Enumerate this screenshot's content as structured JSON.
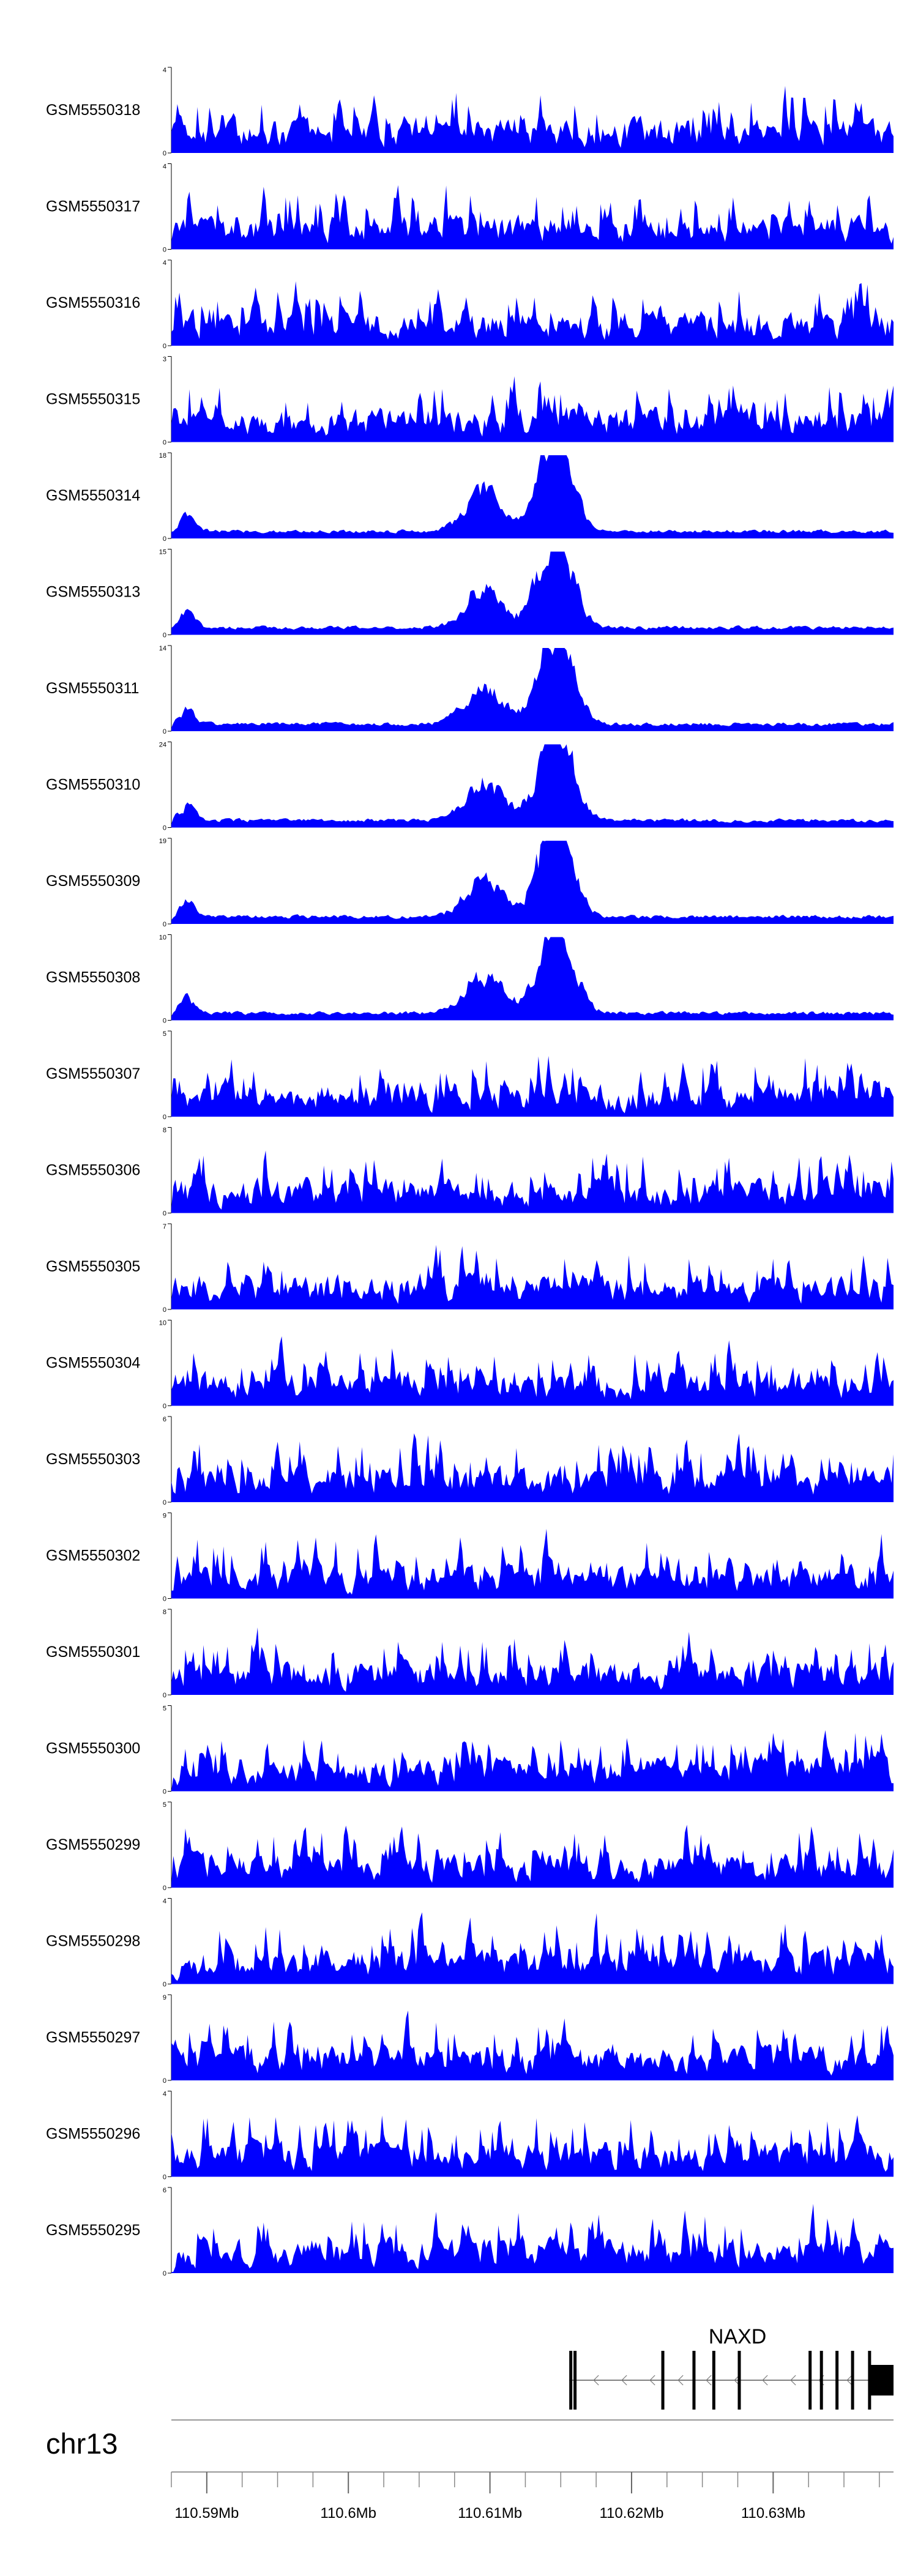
{
  "chart_data": {
    "type": "area",
    "chromosome": "chr13",
    "xlim": [
      110.5875,
      110.6385
    ],
    "x_ticks": [
      110.59,
      110.6,
      110.61,
      110.62,
      110.63
    ],
    "x_tick_labels": [
      "110.59Mb",
      "110.6Mb",
      "110.61Mb",
      "110.62Mb",
      "110.63Mb"
    ],
    "fill_color": "#0000ff",
    "tracks": [
      {
        "name": "GSM5550318",
        "ymax": 4
      },
      {
        "name": "GSM5550317",
        "ymax": 4
      },
      {
        "name": "GSM5550316",
        "ymax": 4
      },
      {
        "name": "GSM5550315",
        "ymax": 3
      },
      {
        "name": "GSM5550314",
        "ymax": 18
      },
      {
        "name": "GSM5550313",
        "ymax": 15
      },
      {
        "name": "GSM5550311",
        "ymax": 14
      },
      {
        "name": "GSM5550310",
        "ymax": 24
      },
      {
        "name": "GSM5550309",
        "ymax": 19
      },
      {
        "name": "GSM5550308",
        "ymax": 10
      },
      {
        "name": "GSM5550307",
        "ymax": 5
      },
      {
        "name": "GSM5550306",
        "ymax": 8
      },
      {
        "name": "GSM5550305",
        "ymax": 7
      },
      {
        "name": "GSM5550304",
        "ymax": 10
      },
      {
        "name": "GSM5550303",
        "ymax": 6
      },
      {
        "name": "GSM5550302",
        "ymax": 9
      },
      {
        "name": "GSM5550301",
        "ymax": 8
      },
      {
        "name": "GSM5550300",
        "ymax": 5
      },
      {
        "name": "GSM5550299",
        "ymax": 5
      },
      {
        "name": "GSM5550298",
        "ymax": 4
      },
      {
        "name": "GSM5550297",
        "ymax": 9
      },
      {
        "name": "GSM5550296",
        "ymax": 4
      },
      {
        "name": "GSM5550295",
        "ymax": 6
      }
    ],
    "gene": {
      "name": "NAXD",
      "strand": "-",
      "start": 110.6156,
      "end": 110.6385,
      "exons": [
        [
          110.6156,
          110.6158
        ],
        [
          110.6159,
          110.6161
        ],
        [
          110.6221,
          110.6223
        ],
        [
          110.6243,
          110.6245
        ],
        [
          110.6257,
          110.6259
        ],
        [
          110.6275,
          110.6277
        ],
        [
          110.6325,
          110.6327
        ],
        [
          110.6333,
          110.6335
        ],
        [
          110.6344,
          110.6346
        ],
        [
          110.6355,
          110.6357
        ],
        [
          110.6367,
          110.6369
        ],
        [
          110.6369,
          110.6385
        ]
      ]
    }
  }
}
